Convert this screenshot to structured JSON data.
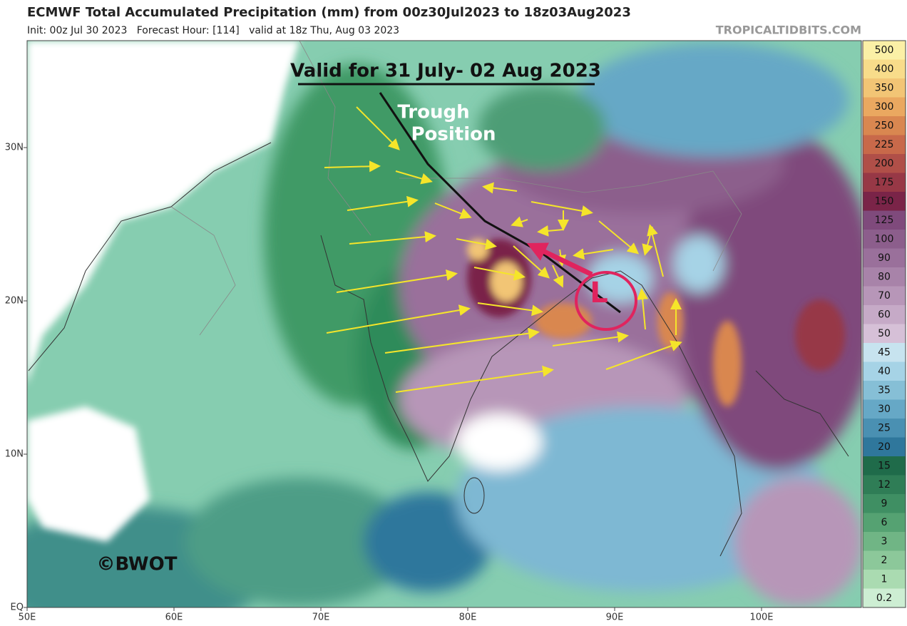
{
  "header": {
    "title": "ECMWF Total Accumulated Precipitation (mm) from 00z30Jul2023 to 18z03Aug2023",
    "subtitle": "Init: 00z Jul 30 2023   Forecast Hour: [114]   valid at 18z Thu, Aug 03 2023",
    "source": "TROPICALTIDBITS.COM"
  },
  "map": {
    "annotations": {
      "validity": "Valid for 31 July- 02 Aug 2023",
      "trough_1": "Trough",
      "trough_2": "Position",
      "low": "L",
      "credit": "©BWOT"
    },
    "lat_labels": [
      "30N",
      "20N",
      "10N",
      "EQ"
    ],
    "lon_labels": [
      "50E",
      "60E",
      "70E",
      "80E",
      "90E",
      "100E"
    ]
  },
  "colorbar": {
    "levels": [
      "500",
      "400",
      "350",
      "300",
      "250",
      "225",
      "200",
      "175",
      "150",
      "125",
      "100",
      "90",
      "80",
      "70",
      "60",
      "50",
      "45",
      "40",
      "35",
      "30",
      "25",
      "20",
      "15",
      "12",
      "9",
      "6",
      "3",
      "2",
      "1",
      "0.2"
    ],
    "colors": [
      "#fbf0a6",
      "#f8dc8a",
      "#f2c575",
      "#eaa860",
      "#d98750",
      "#c8694a",
      "#b04f48",
      "#973846",
      "#7a2448",
      "#7f4a7c",
      "#8c5e8c",
      "#9a709b",
      "#a883a9",
      "#b796b8",
      "#c6aac7",
      "#d6c0d7",
      "#c7e3ef",
      "#a6d3e6",
      "#86bfd6",
      "#66a8c6",
      "#4a90b2",
      "#2f779c",
      "#1f6b4a",
      "#2f7d56",
      "#3f8f63",
      "#55a272",
      "#70b585",
      "#8cc89a",
      "#aadbb1",
      "#cdeed3"
    ]
  }
}
